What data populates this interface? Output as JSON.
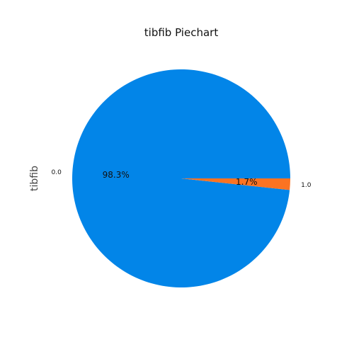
{
  "chart_data": {
    "type": "pie",
    "title": "tibfib Piechart",
    "ylabel": "tibfib",
    "categories": [
      "0.0",
      "1.0"
    ],
    "values": [
      98.3,
      1.7
    ],
    "percent_labels": [
      "98.3%",
      "1.7%"
    ],
    "colors": [
      "#0285e8",
      "#fb7322"
    ],
    "legend": "none"
  }
}
